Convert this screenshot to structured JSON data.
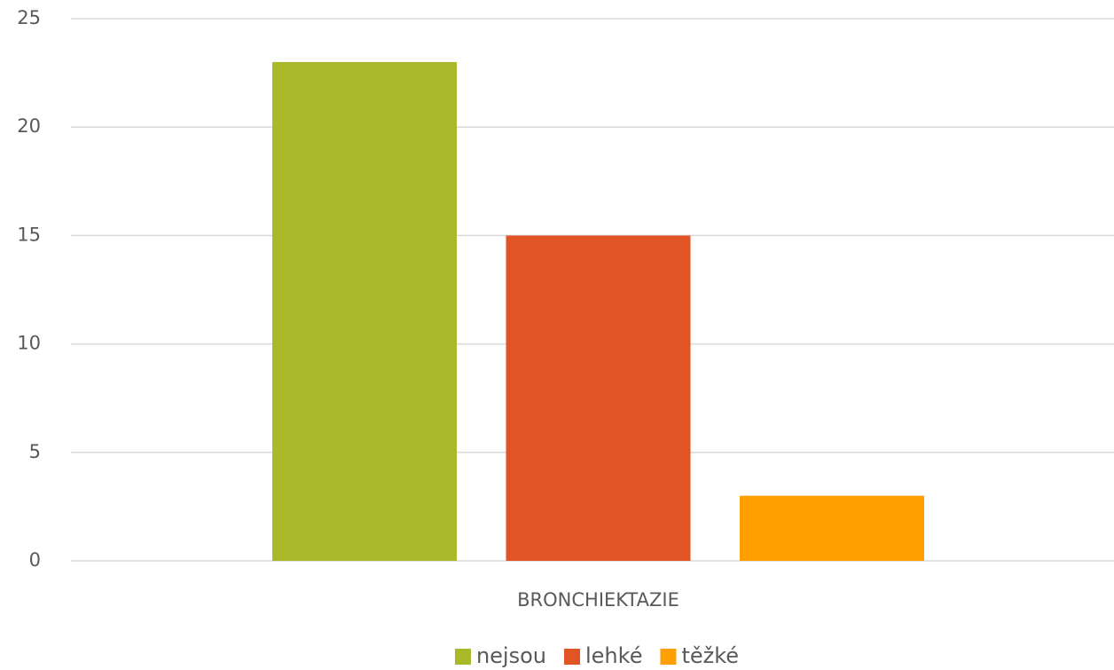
{
  "chart_data": {
    "type": "bar",
    "categories": [
      "BRONCHIEKTAZIE"
    ],
    "series": [
      {
        "name": "nejsou",
        "color": "#a9b92a",
        "values": [
          23
        ]
      },
      {
        "name": "lehké",
        "color": "#e05426",
        "values": [
          15
        ]
      },
      {
        "name": "těžké",
        "color": "#ffa000",
        "values": [
          3
        ]
      }
    ],
    "ylim": [
      0,
      25
    ],
    "yticks": [
      0,
      5,
      10,
      15,
      20,
      25
    ],
    "grid": true,
    "legend": "bottom"
  }
}
